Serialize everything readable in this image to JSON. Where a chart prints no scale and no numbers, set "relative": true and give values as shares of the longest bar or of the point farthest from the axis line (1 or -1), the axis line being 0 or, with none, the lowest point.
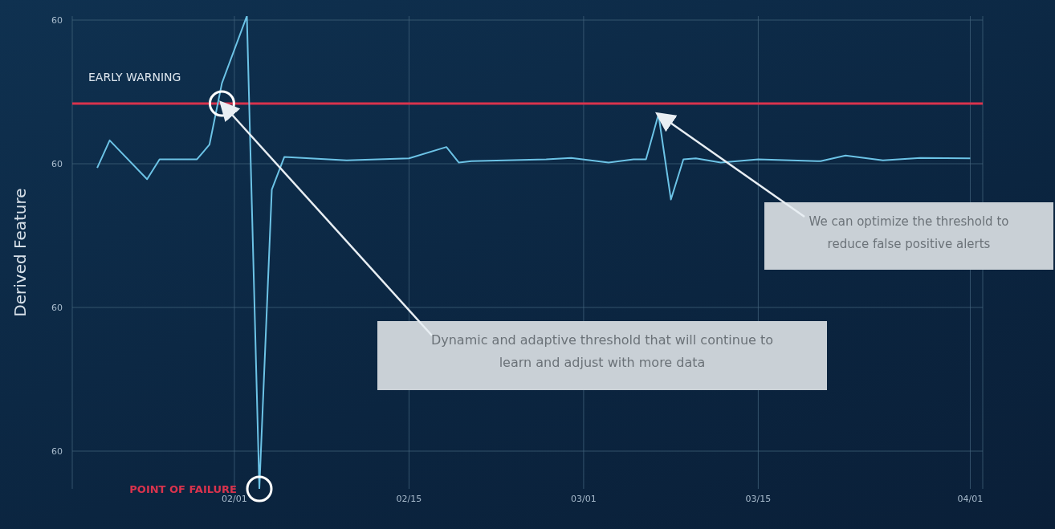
{
  "chart_data": {
    "type": "line",
    "ylabel": "Derived Feature",
    "relative": true,
    "x": [
      "--01-21",
      "--01-22",
      "--01-25",
      "--01-26",
      "--01-29",
      "--01-30",
      "--01-31",
      "--02-02",
      "--02-03",
      "--02-04",
      "--02-05",
      "--02-10",
      "--02-15",
      "--02-18",
      "--02-19",
      "--02-20",
      "--02-26",
      "--02-28",
      "--03-03",
      "--03-05",
      "--03-06",
      "--03-07",
      "--03-08",
      "--03-09",
      "--03-10",
      "--03-12",
      "--03-15",
      "--03-20",
      "--03-22",
      "--03-25",
      "--03-28",
      "--04-01"
    ],
    "series": [
      {
        "color": "#6cc3e6",
        "values": [
          0.679,
          0.737,
          0.655,
          0.697,
          0.697,
          0.728,
          0.858,
          1.0,
          0,
          0.633,
          0.702,
          0.695,
          0.699,
          0.723,
          0.69,
          0.693,
          0.697,
          0.7,
          0.69,
          0.697,
          0.697,
          0.792,
          0.612,
          0.697,
          0.699,
          0.69,
          0.697,
          0.693,
          0.705,
          0.695,
          0.7,
          0.699
        ]
      }
    ],
    "xlim": [
      "--01-19",
      "--04-02"
    ],
    "xticks": [
      {
        "value": "--02-01",
        "label": "02/01"
      },
      {
        "value": "--02-15",
        "label": "02/15"
      },
      {
        "value": "--03-01",
        "label": "03/01"
      },
      {
        "value": "--03-15",
        "label": "03/15"
      },
      {
        "value": "--04-01",
        "label": "04/01"
      }
    ],
    "grid": true,
    "marker": "none",
    "line_style": "solid",
    "ref_lines": [
      {
        "axis": "y",
        "value": 0.815,
        "label": "EARLY WARNING",
        "color": "#d9334d"
      }
    ],
    "annotations": [
      "60",
      "60",
      "60",
      "60",
      {
        "text": "POINT OF FAILURE",
        "x": "--02-03",
        "y": 0
      },
      {
        "text": "Dynamic and adaptive threshold that will continue to learn and adjust with more data",
        "x": "--01-31",
        "y": 0.815
      },
      {
        "text": "We can optimize the threshold to reduce false positive alerts",
        "x": "--03-07",
        "y": 0.792
      }
    ]
  }
}
